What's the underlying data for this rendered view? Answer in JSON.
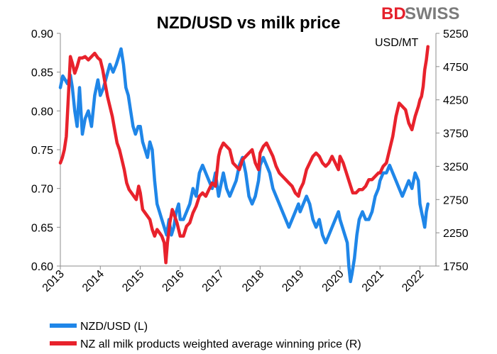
{
  "brand": {
    "part1": "BD",
    "part2": "SWISS",
    "color": "#e5202b",
    "gray": "#7b7b7b"
  },
  "chart_data": {
    "type": "line",
    "title": "NZD/USD vs milk price",
    "right_axis_unit": "USD/MT",
    "x_ticks": [
      "2013",
      "2014",
      "2015",
      "2016",
      "2017",
      "2018",
      "2019",
      "2020",
      "2021",
      "2022"
    ],
    "xlim": [
      2013.0,
      2022.4
    ],
    "left_axis": {
      "ticks": [
        "0.60",
        "0.65",
        "0.70",
        "0.75",
        "0.80",
        "0.85",
        "0.90"
      ],
      "ylim": [
        0.6,
        0.9
      ]
    },
    "right_axis": {
      "ticks": [
        "1750",
        "2250",
        "2750",
        "3250",
        "3750",
        "4250",
        "4750",
        "5250"
      ],
      "ylim": [
        1750,
        5250
      ]
    },
    "legend_position": "bottom",
    "series": [
      {
        "name": "NZD/USD (L)",
        "axis": "left",
        "color": "#1f86e8",
        "x": [
          2013.0,
          2013.06,
          2013.12,
          2013.18,
          2013.25,
          2013.3,
          2013.36,
          2013.42,
          2013.48,
          2013.55,
          2013.62,
          2013.7,
          2013.78,
          2013.86,
          2013.94,
          2014.0,
          2014.08,
          2014.16,
          2014.24,
          2014.32,
          2014.4,
          2014.46,
          2014.52,
          2014.58,
          2014.64,
          2014.7,
          2014.76,
          2014.82,
          2014.88,
          2014.95,
          2015.0,
          2015.06,
          2015.12,
          2015.18,
          2015.24,
          2015.3,
          2015.36,
          2015.42,
          2015.48,
          2015.54,
          2015.6,
          2015.66,
          2015.72,
          2015.78,
          2015.84,
          2015.9,
          2015.96,
          2016.0,
          2016.08,
          2016.16,
          2016.24,
          2016.32,
          2016.4,
          2016.48,
          2016.56,
          2016.64,
          2016.72,
          2016.8,
          2016.88,
          2016.96,
          2017.0,
          2017.08,
          2017.16,
          2017.24,
          2017.32,
          2017.4,
          2017.48,
          2017.56,
          2017.64,
          2017.72,
          2017.8,
          2017.88,
          2017.96,
          2018.0,
          2018.08,
          2018.16,
          2018.24,
          2018.32,
          2018.4,
          2018.48,
          2018.56,
          2018.64,
          2018.72,
          2018.8,
          2018.88,
          2018.96,
          2019.0,
          2019.08,
          2019.16,
          2019.24,
          2019.32,
          2019.4,
          2019.48,
          2019.56,
          2019.64,
          2019.72,
          2019.8,
          2019.88,
          2019.96,
          2020.0,
          2020.06,
          2020.12,
          2020.18,
          2020.22,
          2020.26,
          2020.3,
          2020.36,
          2020.42,
          2020.48,
          2020.56,
          2020.64,
          2020.72,
          2020.8,
          2020.88,
          2020.96,
          2021.0,
          2021.08,
          2021.16,
          2021.24,
          2021.32,
          2021.4,
          2021.48,
          2021.56,
          2021.64,
          2021.72,
          2021.8,
          2021.88,
          2021.96,
          2022.0,
          2022.04,
          2022.08,
          2022.12,
          2022.16,
          2022.2
        ],
        "values": [
          0.83,
          0.845,
          0.84,
          0.835,
          0.846,
          0.83,
          0.8,
          0.78,
          0.83,
          0.77,
          0.79,
          0.8,
          0.78,
          0.82,
          0.84,
          0.82,
          0.83,
          0.845,
          0.86,
          0.85,
          0.86,
          0.87,
          0.88,
          0.86,
          0.83,
          0.82,
          0.8,
          0.78,
          0.77,
          0.78,
          0.78,
          0.76,
          0.75,
          0.74,
          0.76,
          0.75,
          0.71,
          0.68,
          0.67,
          0.66,
          0.65,
          0.64,
          0.66,
          0.64,
          0.65,
          0.67,
          0.68,
          0.66,
          0.66,
          0.67,
          0.68,
          0.7,
          0.69,
          0.72,
          0.73,
          0.72,
          0.71,
          0.7,
          0.72,
          0.69,
          0.7,
          0.72,
          0.7,
          0.69,
          0.7,
          0.71,
          0.73,
          0.74,
          0.72,
          0.69,
          0.68,
          0.69,
          0.71,
          0.73,
          0.74,
          0.73,
          0.72,
          0.7,
          0.69,
          0.68,
          0.67,
          0.66,
          0.65,
          0.66,
          0.67,
          0.68,
          0.67,
          0.68,
          0.69,
          0.68,
          0.66,
          0.65,
          0.66,
          0.64,
          0.63,
          0.64,
          0.65,
          0.66,
          0.67,
          0.66,
          0.65,
          0.64,
          0.63,
          0.6,
          0.58,
          0.59,
          0.61,
          0.64,
          0.66,
          0.67,
          0.66,
          0.66,
          0.67,
          0.69,
          0.7,
          0.71,
          0.72,
          0.72,
          0.73,
          0.72,
          0.71,
          0.7,
          0.69,
          0.7,
          0.71,
          0.7,
          0.72,
          0.71,
          0.68,
          0.67,
          0.66,
          0.65,
          0.67,
          0.68
        ]
      },
      {
        "name": "NZ all milk products weighted average winning price (R)",
        "axis": "right",
        "color": "#e8222c",
        "x": [
          2013.0,
          2013.05,
          2013.1,
          2013.15,
          2013.2,
          2013.25,
          2013.3,
          2013.36,
          2013.42,
          2013.48,
          2013.55,
          2013.62,
          2013.7,
          2013.78,
          2013.86,
          2013.94,
          2014.0,
          2014.06,
          2014.12,
          2014.18,
          2014.24,
          2014.3,
          2014.36,
          2014.42,
          2014.48,
          2014.54,
          2014.6,
          2014.66,
          2014.72,
          2014.78,
          2014.84,
          2014.9,
          2014.96,
          2015.0,
          2015.06,
          2015.12,
          2015.18,
          2015.24,
          2015.3,
          2015.36,
          2015.42,
          2015.48,
          2015.54,
          2015.6,
          2015.64,
          2015.68,
          2015.74,
          2015.8,
          2015.86,
          2015.92,
          2016.0,
          2016.08,
          2016.16,
          2016.24,
          2016.32,
          2016.4,
          2016.48,
          2016.56,
          2016.64,
          2016.72,
          2016.8,
          2016.88,
          2016.96,
          2017.0,
          2017.08,
          2017.16,
          2017.24,
          2017.32,
          2017.4,
          2017.48,
          2017.56,
          2017.64,
          2017.72,
          2017.8,
          2017.88,
          2017.96,
          2018.0,
          2018.08,
          2018.16,
          2018.24,
          2018.32,
          2018.4,
          2018.48,
          2018.56,
          2018.64,
          2018.72,
          2018.8,
          2018.88,
          2018.96,
          2019.0,
          2019.08,
          2019.16,
          2019.24,
          2019.32,
          2019.4,
          2019.48,
          2019.56,
          2019.64,
          2019.72,
          2019.8,
          2019.88,
          2019.96,
          2020.0,
          2020.08,
          2020.16,
          2020.24,
          2020.32,
          2020.4,
          2020.48,
          2020.56,
          2020.64,
          2020.72,
          2020.8,
          2020.88,
          2020.96,
          2021.0,
          2021.08,
          2021.16,
          2021.24,
          2021.32,
          2021.4,
          2021.48,
          2021.56,
          2021.64,
          2021.72,
          2021.8,
          2021.88,
          2021.96,
          2022.0,
          2022.04,
          2022.08,
          2022.12,
          2022.16,
          2022.2
        ],
        "values": [
          3300,
          3380,
          3500,
          3700,
          4300,
          4900,
          4800,
          4650,
          4750,
          4880,
          4880,
          4900,
          4850,
          4900,
          4950,
          4880,
          4850,
          4700,
          4500,
          4300,
          4150,
          4000,
          3800,
          3600,
          3500,
          3350,
          3200,
          3000,
          2900,
          2850,
          2800,
          2750,
          2950,
          2850,
          2600,
          2550,
          2500,
          2450,
          2300,
          2200,
          2300,
          2250,
          2200,
          2100,
          1800,
          2100,
          2400,
          2600,
          2500,
          2400,
          2200,
          2200,
          2350,
          2400,
          2550,
          2650,
          2800,
          2850,
          2800,
          2900,
          3000,
          2950,
          3400,
          3500,
          3600,
          3550,
          3500,
          3300,
          3250,
          3200,
          3350,
          3400,
          3450,
          3500,
          3300,
          3200,
          3450,
          3550,
          3600,
          3500,
          3400,
          3250,
          3150,
          3100,
          3050,
          3000,
          2950,
          2850,
          2800,
          2900,
          3000,
          3200,
          3300,
          3400,
          3450,
          3400,
          3300,
          3250,
          3300,
          3400,
          3300,
          3200,
          3400,
          3300,
          3150,
          3000,
          2850,
          2850,
          2900,
          2900,
          2950,
          3050,
          3050,
          3100,
          3150,
          3150,
          3250,
          3300,
          3500,
          3700,
          4000,
          4200,
          4150,
          4100,
          3900,
          3800,
          4000,
          4150,
          4250,
          4300,
          4450,
          4700,
          4850,
          5050
        ]
      }
    ]
  }
}
